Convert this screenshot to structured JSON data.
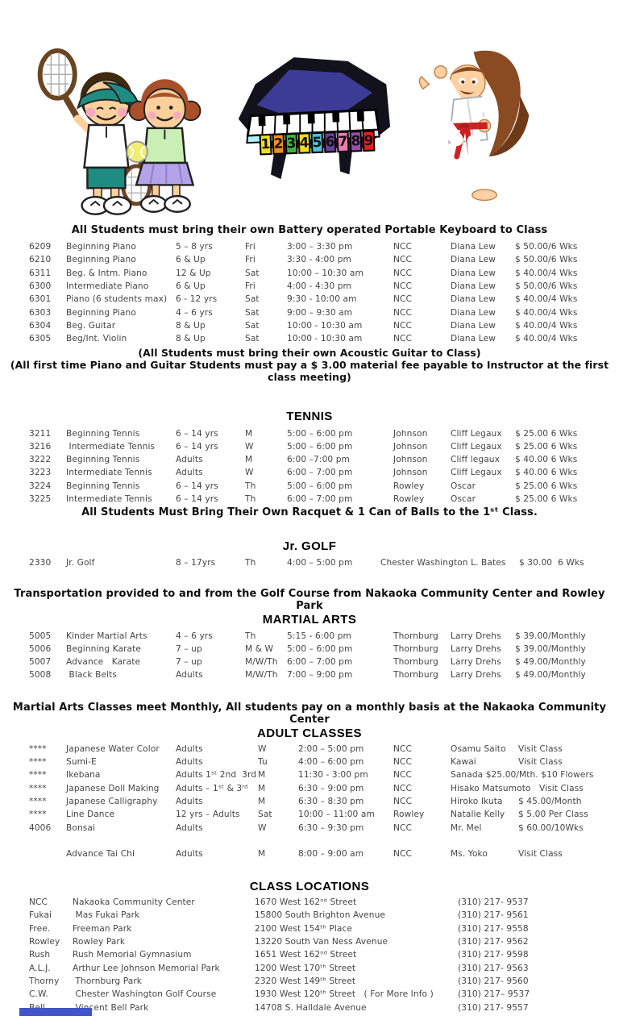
{
  "art": {
    "tennis_kids": {
      "label": "tennis boy and girl clipart"
    },
    "piano": {
      "label": "toy grand piano with numbered keys",
      "numbers": [
        "1",
        "2",
        "3",
        "4",
        "5",
        "6",
        "7",
        "8",
        "9"
      ],
      "tile_colors": [
        "#f2dd1f",
        "#f0921f",
        "#3cb44a",
        "#f2dd1f",
        "#45c8dc",
        "#6a3f9e",
        "#ef7ab5",
        "#9a4fae",
        "#e8201e"
      ]
    },
    "karate_girl": {
      "label": "karate girl kicking clipart"
    }
  },
  "music": {
    "heading": "All Students must bring their own Battery operated Portable Keyboard to Class",
    "note_guitar": "(All Students must bring their own Acoustic Guitar to Class)",
    "note_fee": "(All first time Piano and Guitar Students must pay a $ 3.00 material fee payable to Instructor at the first class meeting)"
  },
  "sections": {
    "tennis": {
      "title": "TENNIS",
      "note": "All Students Must Bring Their Own Racquet & 1 Can of Balls to the 1ˢᵗ Class."
    },
    "golf": {
      "title": "Jr. GOLF",
      "transport_note": "Transportation provided to and from the Golf Course from Nakaoka Community Center and Rowley Park"
    },
    "martial": {
      "title": "MARTIAL ARTS",
      "note": "Martial Arts Classes meet Monthly, All students pay on a monthly basis at the Nakaoka Community Center"
    },
    "adult": {
      "title": "ADULT CLASSES"
    },
    "locations": {
      "title": "CLASS LOCATIONS"
    }
  },
  "tables": {
    "music": {
      "rows": [
        [
          "6209",
          "Beginning Piano",
          "5 – 8 yrs",
          "Fri",
          "3:00 – 3:30 pm",
          "NCC",
          "Diana Lew",
          "$ 50.00/6 Wks"
        ],
        [
          "6210",
          "Beginning Piano",
          "6 & Up",
          "Fri",
          "3:30 - 4:00 pm",
          "NCC",
          "Diana Lew",
          "$ 50.00/6 Wks"
        ],
        [
          "6311",
          "Beg. & Intm. Piano",
          "12 & Up",
          "Sat",
          "10:00 – 10:30 am",
          "NCC",
          "Diana Lew",
          "$ 40.00/4 Wks"
        ],
        [
          "6300",
          "Intermediate Piano",
          "6 & Up",
          "Fri",
          "4:00 - 4:30 pm",
          "NCC",
          "Diana Lew",
          "$ 50.00/6 Wks"
        ],
        [
          "6301",
          "Piano (6 students max)",
          "6 - 12 yrs",
          "Sat",
          "9:30 - 10:00 am",
          "NCC",
          "Diana Lew",
          "$ 40.00/4 Wks"
        ],
        [
          "6303",
          "Beginning Piano",
          "4 – 6 yrs",
          "Sat",
          "9:00 – 9:30 am",
          "NCC",
          "Diana Lew",
          "$ 40.00/4 Wks"
        ],
        [
          "6304",
          "Beg. Guitar",
          "8 & Up",
          "Sat",
          "10:00 - 10:30 am",
          "NCC",
          "Diana Lew",
          "$ 40.00/4 Wks"
        ],
        [
          "6305",
          "Beg/Int. Violin",
          "8 & Up",
          "Sat",
          "10:00 - 10:30 am",
          "NCC",
          "Diana Lew",
          "$ 40.00/4 Wks"
        ]
      ]
    },
    "tennis": {
      "rows": [
        [
          "3211",
          "Beginning Tennis",
          "6 – 14 yrs",
          "M",
          "5:00 – 6:00 pm",
          "Johnson",
          "Cliff Legaux",
          "$ 25.00 6 Wks"
        ],
        [
          "3216",
          " Intermediate Tennis",
          "6 – 14 yrs",
          "W",
          "5:00 – 6:00 pm",
          "Johnson",
          "Cliff Legaux",
          "$ 25.00 6 Wks"
        ],
        [
          "3222",
          "Beginning Tennis",
          "Adults",
          "M",
          "6:00 –7:00 pm",
          "Johnson",
          "Cliff legaux",
          "$ 40.00 6 Wks"
        ],
        [
          "3223",
          "Intermediate Tennis",
          "Adults",
          "W",
          "6:00 – 7:00 pm",
          "Johnson",
          "Cliff Legaux",
          "$ 40.00 6 Wks"
        ],
        [
          "3224",
          "Beginning Tennis",
          "6 – 14 yrs",
          "Th",
          "5:00 – 6:00 pm",
          "Rowley",
          "Oscar",
          "$ 25.00 6 Wks"
        ],
        [
          "3225",
          "Intermediate Tennis",
          "6 – 14 yrs",
          "Th",
          "6:00 – 7:00 pm",
          "Rowley",
          "Oscar",
          "$ 25.00 6 Wks"
        ]
      ]
    },
    "golf": {
      "rows": [
        [
          "2330",
          "Jr. Golf",
          "8 – 17yrs",
          "Th",
          "4:00 – 5:00 pm",
          "Chester Washington L. Bates",
          "$ 30.00  6 Wks"
        ]
      ]
    },
    "martial": {
      "rows": [
        [
          "5005",
          "Kinder Martial Arts",
          "4 – 6 yrs",
          "Th",
          "5:15 - 6:00 pm",
          "Thornburg",
          "Larry Drehs",
          "$ 39.00/Monthly"
        ],
        [
          "5006",
          "Beginning Karate",
          "7 – up",
          "M & W",
          "5:00 – 6:00 pm",
          "Thornburg",
          "Larry Drehs",
          "$ 39.00/Monthly"
        ],
        [
          "5007",
          "Advance   Karate",
          "7 – up",
          "M/W/Th",
          "6:00 – 7:00 pm",
          "Thornburg",
          "Larry Drehs",
          "$ 49.00/Monthly"
        ],
        [
          "5008",
          " Black Belts",
          "Adults",
          "M/W/Th",
          "7:00 – 9:00 pm",
          "Thornburg",
          "Larry Drehs",
          "$ 49.00/Monthly"
        ]
      ]
    },
    "adult": {
      "rows": [
        [
          "****",
          "Japanese Water Color",
          "Adults",
          "W",
          "2:00 – 5:00 pm",
          "NCC",
          "Osamu Saito",
          "Visit Class"
        ],
        [
          "****",
          "Sumi-E",
          "Adults",
          "Tu",
          "4:00 – 6:00 pm",
          "NCC",
          "Kawai",
          "Visit Class"
        ],
        [
          "****",
          "Ikebana",
          "Adults 1ˢᵗ 2nd  3rd",
          "M",
          "11:30 - 3:00 pm",
          "NCC",
          "Sanada $25.00/Mth. $10 Flowers"
        ],
        [
          "****",
          "Japanese Doll Making",
          "Adults – 1ˢᵗ & 3ʳᵈ",
          "M",
          "6:30 – 9:00 pm",
          "NCC",
          "Hisako Matsumoto   Visit Class"
        ],
        [
          "****",
          "Japanese Calligraphy",
          "Adults",
          "M",
          "6:30 – 8:30 pm",
          "NCC",
          "Hiroko Ikuta",
          "$ 45.00/Month"
        ],
        [
          "****",
          "Line Dance",
          "12 yrs – Adults",
          "Sat",
          "10:00 – 11:00 am",
          "Rowley",
          "Natalie Kelly",
          "$ 5.00 Per Class"
        ],
        [
          "4006",
          "Bonsai",
          "Adults",
          "W",
          "6:30 – 9:30 pm",
          "NCC",
          "Mr. Mel",
          "$ 60.00/10Wks"
        ]
      ]
    },
    "adult2": {
      "rows": [
        [
          "",
          "Advance Tai Chi",
          "Adults",
          "M",
          "8:00 – 9:00 am",
          "NCC",
          "Ms. Yoko",
          "Visit Class"
        ]
      ]
    },
    "locations": {
      "rows": [
        [
          "NCC",
          "Nakaoka Community Center",
          "1670 West 162ⁿᵈ Street",
          "(310) 217- 9537"
        ],
        [
          "Fukai",
          " Mas Fukai Park",
          "15800 South Brighton Avenue",
          "(310) 217- 9561"
        ],
        [
          "Free.",
          "Freeman Park",
          "2100 West 154ᵗʰ Place",
          "(310) 217- 9558"
        ],
        [
          "Rowley",
          "Rowley Park",
          "13220 South Van Ness Avenue",
          "(310) 217- 9562"
        ],
        [
          "Rush",
          "Rush Memorial Gymnasium",
          "1651 West 162ⁿᵈ Street",
          "(310) 217- 9598"
        ],
        [
          "A.L.J.",
          "Arthur Lee Johnson Memorial Park",
          "1200 West 170ᵗʰ Street",
          "(310) 217- 9563"
        ],
        [
          "Thorny",
          " Thornburg Park",
          "2320 West 149ᵗʰ Street",
          "(310) 217- 9560"
        ],
        [
          "C.W.",
          " Chester Washington Golf Course",
          "1930 West 120ᵗʰ Street   ( For More Info )",
          "(310) 217– 9537"
        ],
        [
          "Bell",
          " Vincent Bell Park",
          "14708 S. Halldale Avenue",
          "(310) 217- 9557"
        ]
      ]
    }
  }
}
